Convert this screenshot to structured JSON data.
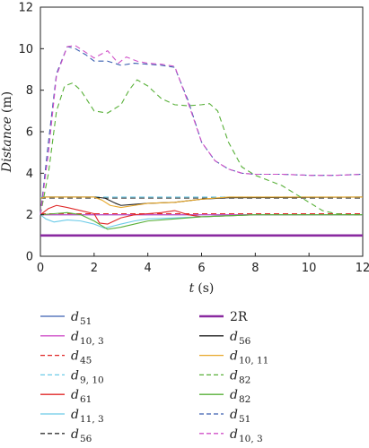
{
  "chart_data": {
    "type": "line",
    "title": "",
    "xlabel": "t",
    "xunit": "(s)",
    "ylabel": "Distance",
    "yunit": "(m)",
    "xlim": [
      0,
      12
    ],
    "ylim": [
      0,
      12
    ],
    "xticks": [
      "0",
      "2",
      "4",
      "6",
      "8",
      "10",
      "12"
    ],
    "yticks": [
      "0",
      "2",
      "4",
      "6",
      "8",
      "10",
      "12"
    ],
    "grid": false,
    "legend_position": "bottom",
    "series": [
      {
        "key": "d51a",
        "legend_main": "d",
        "legend_sub": "51",
        "color": "#3a5fb0",
        "dash": "solid",
        "x": [
          0,
          12
        ],
        "y": [
          2.0,
          2.0
        ]
      },
      {
        "key": "d103a",
        "legend_main": "d",
        "legend_sub": "10, 3",
        "color": "#d050c8",
        "dash": "solid",
        "x": [
          0,
          12
        ],
        "y": [
          2.0,
          2.0
        ]
      },
      {
        "key": "d45",
        "legend_main": "d",
        "legend_sub": "45",
        "color": "#e02828",
        "dash": "dash",
        "x": [
          0,
          12
        ],
        "y": [
          2.05,
          2.05
        ]
      },
      {
        "key": "d910",
        "legend_main": "d",
        "legend_sub": "9, 10",
        "color": "#6ccbe8",
        "dash": "dash",
        "x": [
          0,
          12
        ],
        "y": [
          2.85,
          2.85
        ]
      },
      {
        "key": "d61",
        "legend_main": "d",
        "legend_sub": "61",
        "color": "#e02828",
        "dash": "solid",
        "x": [
          0,
          0.3,
          0.6,
          1.0,
          1.5,
          2.0,
          2.2,
          2.5,
          3.0,
          3.5,
          4.0,
          4.5,
          5.0,
          5.5,
          6.0,
          7.0,
          8.0,
          12
        ],
        "y": [
          2.0,
          2.3,
          2.45,
          2.35,
          2.2,
          2.05,
          1.6,
          1.55,
          1.85,
          2.0,
          2.05,
          2.1,
          2.2,
          2.0,
          1.9,
          1.95,
          2.0,
          2.0
        ]
      },
      {
        "key": "d113",
        "legend_main": "d",
        "legend_sub": "11, 3",
        "color": "#6ccbe8",
        "dash": "solid",
        "x": [
          0,
          0.2,
          0.5,
          1.0,
          1.5,
          2.0,
          2.4,
          3.0,
          3.5,
          4.0,
          5.0,
          6.0,
          7.0,
          8.0,
          12
        ],
        "y": [
          2.0,
          1.8,
          1.65,
          1.75,
          1.7,
          1.55,
          1.35,
          1.55,
          1.7,
          1.8,
          1.85,
          1.9,
          1.95,
          2.0,
          2.0
        ]
      },
      {
        "key": "d56a",
        "legend_main": "d",
        "legend_sub": "56",
        "color": "#333333",
        "dash": "dash",
        "x": [
          0,
          12
        ],
        "y": [
          2.8,
          2.8
        ]
      },
      {
        "key": "twoR",
        "legend_main": "2R",
        "legend_sub": "",
        "color": "#8a2aa0",
        "dash": "solid",
        "thick": true,
        "x": [
          0,
          12
        ],
        "y": [
          1.0,
          1.0
        ]
      },
      {
        "key": "d56b",
        "legend_main": "d",
        "legend_sub": "56",
        "color": "#222222",
        "dash": "solid",
        "x": [
          0,
          0.2,
          1.0,
          2.0,
          2.4,
          2.8,
          3.0,
          3.5,
          4.0,
          5.0,
          6.0,
          7.0,
          12
        ],
        "y": [
          2.8,
          2.85,
          2.85,
          2.85,
          2.8,
          2.55,
          2.45,
          2.5,
          2.55,
          2.6,
          2.75,
          2.82,
          2.85
        ]
      },
      {
        "key": "d1011",
        "legend_main": "d",
        "legend_sub": "10, 11",
        "color": "#e8a82a",
        "dash": "solid",
        "x": [
          0,
          0.2,
          1.0,
          2.0,
          2.3,
          2.6,
          3.0,
          3.5,
          4.0,
          5.0,
          6.0,
          7.0,
          12
        ],
        "y": [
          2.8,
          2.85,
          2.85,
          2.85,
          2.7,
          2.45,
          2.35,
          2.45,
          2.55,
          2.6,
          2.75,
          2.85,
          2.85
        ]
      },
      {
        "key": "d82a",
        "legend_main": "d",
        "legend_sub": "82",
        "color": "#58b038",
        "dash": "dash",
        "x": [
          0,
          0.3,
          0.6,
          0.9,
          1.2,
          1.5,
          2.0,
          2.5,
          3.0,
          3.3,
          3.6,
          4.0,
          4.5,
          5.0,
          5.5,
          6.0,
          6.3,
          6.6,
          7.0,
          7.5,
          8.0,
          9.0,
          10.0,
          10.5,
          11.0,
          11.5,
          12
        ],
        "y": [
          2.0,
          4.0,
          7.0,
          8.2,
          8.35,
          8.0,
          7.0,
          6.9,
          7.3,
          8.0,
          8.5,
          8.2,
          7.6,
          7.3,
          7.25,
          7.3,
          7.35,
          7.0,
          5.5,
          4.3,
          3.9,
          3.4,
          2.6,
          2.2,
          2.05,
          2.0,
          2.0
        ]
      },
      {
        "key": "d82b",
        "legend_main": "d",
        "legend_sub": "82",
        "color": "#58b038",
        "dash": "solid",
        "x": [
          0,
          0.5,
          1.0,
          1.5,
          2.0,
          2.5,
          3.0,
          3.5,
          4.0,
          5.0,
          6.0,
          7.0,
          8.0,
          12
        ],
        "y": [
          2.0,
          2.05,
          2.1,
          2.0,
          1.7,
          1.3,
          1.4,
          1.55,
          1.7,
          1.8,
          1.9,
          1.95,
          2.0,
          2.0
        ]
      },
      {
        "key": "d51b",
        "legend_main": "d",
        "legend_sub": "51",
        "color": "#3a5fb0",
        "dash": "dash",
        "x": [
          0,
          0.3,
          0.6,
          1.0,
          1.3,
          1.7,
          2.0,
          2.5,
          3.0,
          3.5,
          4.0,
          4.5,
          5.0,
          5.5,
          6.0,
          6.5,
          7.0,
          7.5,
          8.0,
          9.0,
          10.0,
          11.0,
          12
        ],
        "y": [
          2.0,
          5.5,
          8.8,
          10.1,
          10.0,
          9.7,
          9.4,
          9.4,
          9.2,
          9.3,
          9.25,
          9.2,
          9.1,
          7.5,
          5.5,
          4.6,
          4.2,
          4.0,
          3.95,
          3.95,
          3.9,
          3.9,
          3.95
        ]
      },
      {
        "key": "d103b",
        "legend_main": "d",
        "legend_sub": "10, 3",
        "color": "#d050c8",
        "dash": "dash",
        "x": [
          0,
          0.3,
          0.6,
          1.0,
          1.3,
          1.6,
          2.0,
          2.5,
          2.9,
          3.2,
          3.6,
          4.0,
          4.5,
          5.0,
          5.5,
          6.0,
          6.5,
          7.0,
          7.5,
          8.0,
          9.0,
          10.0,
          11.0,
          12
        ],
        "y": [
          2.0,
          5.0,
          8.7,
          10.1,
          10.15,
          9.9,
          9.55,
          9.9,
          9.3,
          9.6,
          9.4,
          9.3,
          9.25,
          9.15,
          7.4,
          5.5,
          4.6,
          4.2,
          4.0,
          3.95,
          3.95,
          3.9,
          3.9,
          3.95
        ]
      }
    ]
  }
}
